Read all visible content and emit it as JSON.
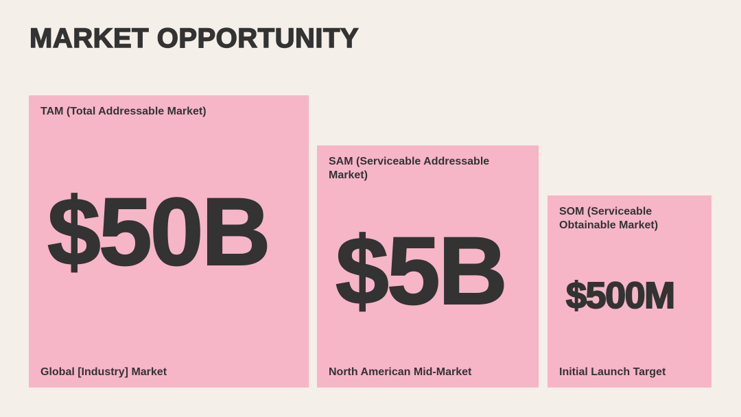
{
  "header": {
    "title": "MARKET OPPORTUNITY"
  },
  "boxes": [
    {
      "label": "TAM (Total Addressable Market)",
      "value": "$50B",
      "footer": "Global [Industry] Market"
    },
    {
      "label": "SAM (Serviceable Addressable Market)",
      "value": "$5B",
      "footer": "North American Mid-Market"
    },
    {
      "label": "SOM (Serviceable Obtainable Market)",
      "value": "$500M",
      "footer": "Initial Launch Target"
    }
  ]
}
